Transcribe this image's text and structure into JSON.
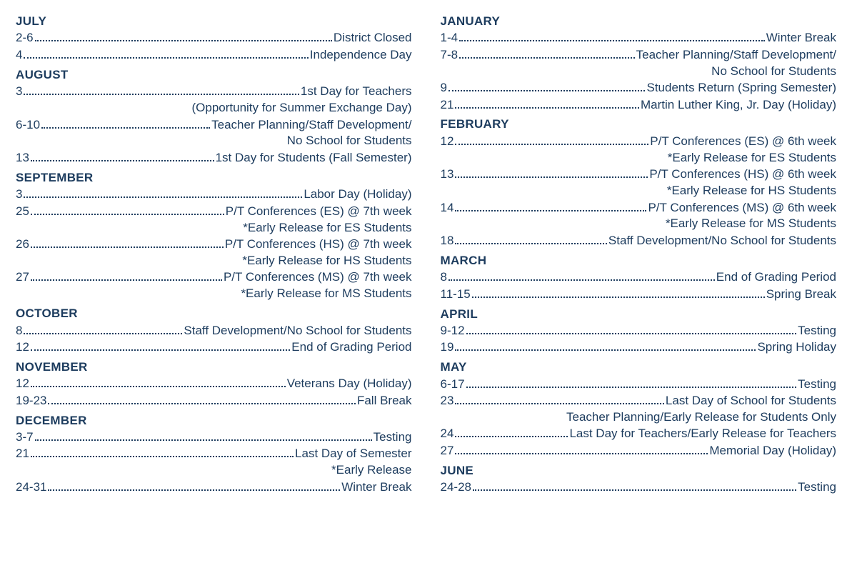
{
  "leftColumn": [
    {
      "month": "JULY",
      "items": [
        {
          "date": "2-6",
          "desc": "District Closed"
        },
        {
          "date": "4",
          "desc": "Independence Day"
        }
      ]
    },
    {
      "month": "AUGUST",
      "items": [
        {
          "date": "3",
          "desc": "1st Day for Teachers",
          "cont": [
            "(Opportunity for Summer Exchange Day)"
          ]
        },
        {
          "date": "6-10",
          "desc": "Teacher Planning/Staff Development/",
          "cont": [
            "No School for Students"
          ]
        },
        {
          "date": "13",
          "desc": "1st Day for Students (Fall Semester)"
        }
      ]
    },
    {
      "month": "SEPTEMBER",
      "items": [
        {
          "date": "3",
          "desc": "Labor Day (Holiday)"
        },
        {
          "date": "25",
          "desc": "P/T Conferences (ES) @ 7th week",
          "cont": [
            "*Early Release for ES Students"
          ]
        },
        {
          "date": "26",
          "desc": "P/T Conferences (HS) @ 7th week",
          "cont": [
            "*Early Release for HS Students"
          ]
        },
        {
          "date": "27",
          "desc": "P/T Conferences (MS) @ 7th week",
          "cont": [
            "*Early Release for MS Students"
          ]
        }
      ]
    },
    {
      "month": "OCTOBER",
      "items": [
        {
          "date": "8",
          "desc": "Staff Development/No School for Students"
        },
        {
          "date": "12",
          "desc": "End of Grading Period"
        }
      ]
    },
    {
      "month": "NOVEMBER",
      "items": [
        {
          "date": "12",
          "desc": "Veterans Day (Holiday)"
        },
        {
          "date": "19-23",
          "desc": "Fall Break"
        }
      ]
    },
    {
      "month": "DECEMBER",
      "items": [
        {
          "date": "3-7",
          "desc": "Testing"
        },
        {
          "date": "21",
          "desc": "Last Day of Semester",
          "cont": [
            "*Early Release"
          ]
        },
        {
          "date": " 24-31",
          "desc": "Winter Break"
        }
      ]
    }
  ],
  "rightColumn": [
    {
      "month": "JANUARY",
      "items": [
        {
          "date": "1-4",
          "desc": "Winter Break"
        },
        {
          "date": "7-8",
          "desc": "Teacher Planning/Staff Development/",
          "cont": [
            "No School for Students"
          ]
        },
        {
          "date": "9",
          "desc": "Students Return (Spring Semester)"
        },
        {
          "date": "21",
          "desc": "Martin Luther King, Jr. Day (Holiday)"
        }
      ]
    },
    {
      "month": "FEBRUARY",
      "items": [
        {
          "date": "12",
          "desc": "P/T Conferences (ES) @ 6th week",
          "cont": [
            "*Early Release for ES Students"
          ]
        },
        {
          "date": "13",
          "desc": "P/T Conferences (HS) @ 6th week",
          "cont": [
            "*Early Release for HS Students"
          ]
        },
        {
          "date": "14",
          "desc": "P/T Conferences (MS) @ 6th week",
          "cont": [
            "*Early Release for MS Students"
          ]
        },
        {
          "date": "18",
          "desc": "Staff Development/No School for Students"
        }
      ]
    },
    {
      "month": "MARCH",
      "items": [
        {
          "date": "8",
          "desc": "End of Grading Period"
        },
        {
          "date": "11-15",
          "desc": "Spring Break"
        }
      ]
    },
    {
      "month": "APRIL",
      "items": [
        {
          "date": "9-12",
          "desc": "Testing"
        },
        {
          "date": "19",
          "desc": "Spring Holiday"
        }
      ]
    },
    {
      "month": "MAY",
      "items": [
        {
          "date": "6-17",
          "desc": "Testing"
        },
        {
          "date": "23",
          "desc": "Last Day of School for Students",
          "cont": [
            "Teacher Planning/Early Release for Students Only"
          ]
        },
        {
          "date": "24",
          "desc": "Last Day for Teachers/Early Release for Teachers"
        },
        {
          "date": "27",
          "desc": "Memorial Day (Holiday)"
        }
      ]
    },
    {
      "month": "JUNE",
      "items": [
        {
          "date": "24-28",
          "desc": "Testing"
        }
      ]
    }
  ]
}
